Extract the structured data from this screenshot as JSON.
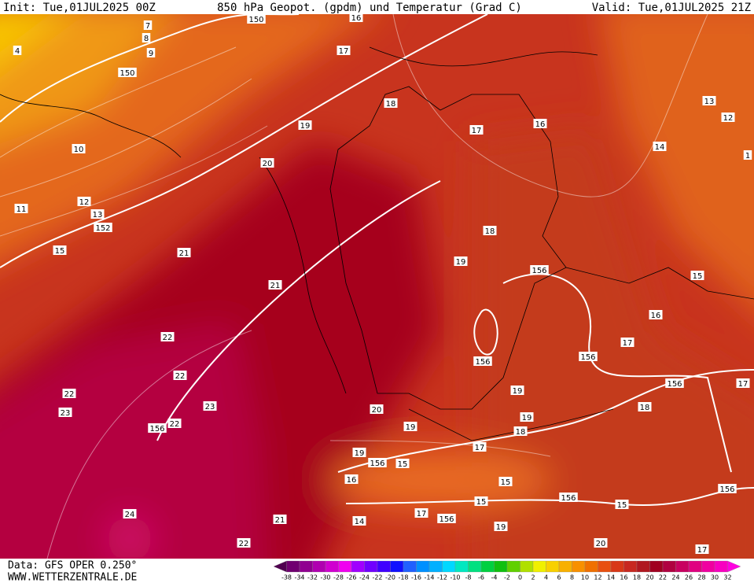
{
  "header": {
    "init": "Init: Tue,01JUL2025 00Z",
    "title": "850 hPa Geopot. (gpdm) und Temperatur (Grad C)",
    "valid": "Valid: Tue,01JUL2025 21Z"
  },
  "map": {
    "temperature_labels": [
      "16",
      "17",
      "7",
      "8",
      "9",
      "4",
      "18",
      "19",
      "16",
      "17",
      "13",
      "12",
      "14",
      "1",
      "10",
      "20",
      "12",
      "11",
      "13",
      "15",
      "21",
      "18",
      "19",
      "21",
      "16",
      "17",
      "22",
      "22",
      "19",
      "18",
      "17",
      "22",
      "23",
      "23",
      "22",
      "20",
      "19",
      "19",
      "18",
      "17",
      "19",
      "16",
      "15",
      "15",
      "17",
      "14",
      "21",
      "24",
      "19",
      "22",
      "20",
      "17",
      "15"
    ],
    "geopotential_labels": [
      "150",
      "150",
      "152",
      "156",
      "15",
      "156",
      "156",
      "156",
      "156",
      "156",
      "15",
      "156",
      "156",
      "156"
    ]
  },
  "colorbar": {
    "labels": [
      "-38",
      "-34",
      "-32",
      "-30",
      "-28",
      "-26",
      "-24",
      "-22",
      "-20",
      "-18",
      "-16",
      "-14",
      "-12",
      "-10",
      "-8",
      "-6",
      "-4",
      "-2",
      "0",
      "2",
      "4",
      "6",
      "8",
      "10",
      "12",
      "14",
      "16",
      "18",
      "20",
      "22",
      "24",
      "26",
      "28",
      "30",
      "32"
    ]
  },
  "footer": {
    "data": "Data: GFS OPER 0.250°",
    "site": "WWW.WETTERZENTRALE.DE"
  }
}
